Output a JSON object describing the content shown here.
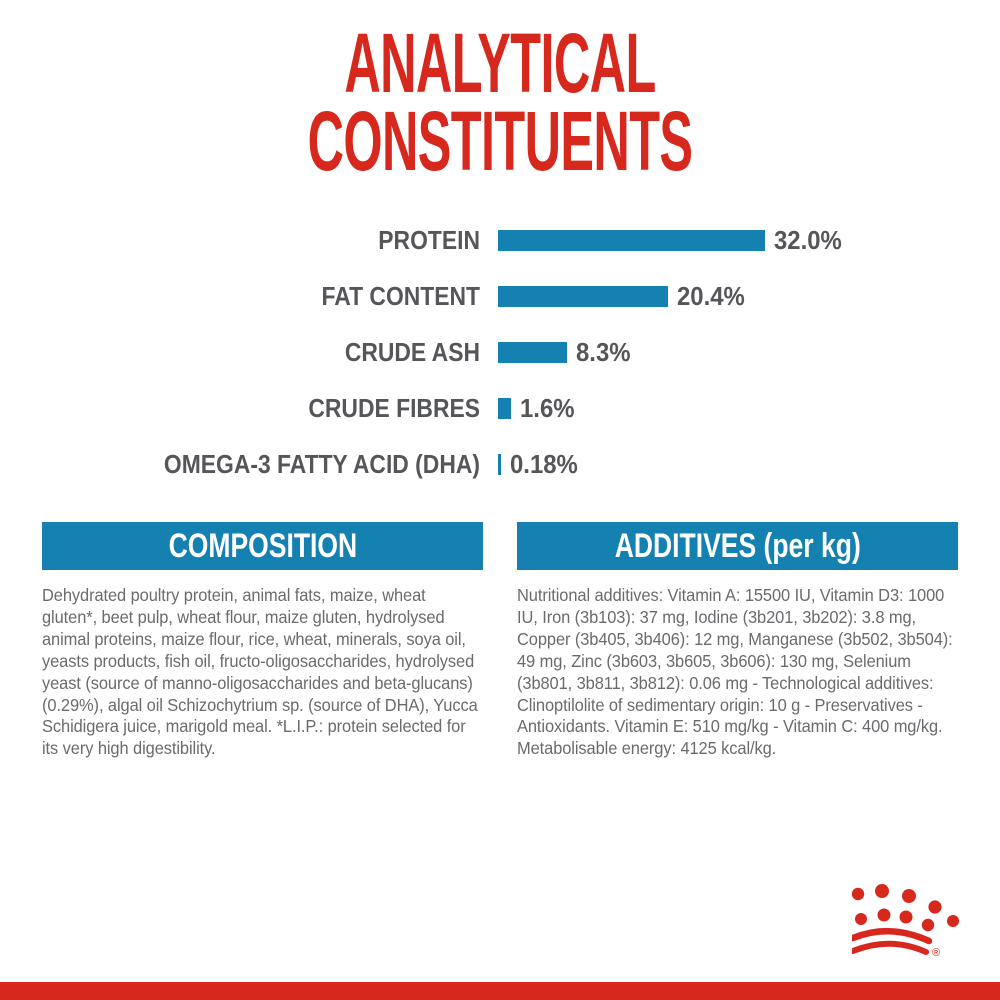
{
  "title": {
    "line1": "ANALYTICAL",
    "line2": "CONSTITUENTS"
  },
  "chart_data": {
    "type": "bar",
    "orientation": "horizontal",
    "categories": [
      "PROTEIN",
      "FAT CONTENT",
      "CRUDE ASH",
      "CRUDE FIBRES",
      "OMEGA-3 FATTY ACID (DHA)"
    ],
    "values": [
      32.0,
      20.4,
      8.3,
      1.6,
      0.18
    ],
    "value_labels": [
      "32.0%",
      "20.4%",
      "8.3%",
      "1.6%",
      "0.18%"
    ],
    "unit": "%",
    "xlim": [
      0,
      32
    ],
    "grid": false,
    "legend": "none",
    "bar_color": "#1481b1",
    "title": "ANALYTICAL CONSTITUENTS"
  },
  "sections": {
    "composition": {
      "header": "COMPOSITION",
      "body": "Dehydrated poultry protein, animal fats, maize, wheat gluten*, beet pulp, wheat flour, maize gluten, hydrolysed animal proteins, maize flour, rice, wheat, minerals, soya oil, yeasts products, fish oil, fructo-oligosaccharides, hydrolysed yeast (source of manno-oligosaccharides and beta-glucans) (0.29%), algal oil Schizochytrium sp. (source of DHA), Yucca Schidigera juice, marigold meal. *L.I.P.: protein selected for its very high digestibility."
    },
    "additives": {
      "header": "ADDITIVES (per kg)",
      "body": "Nutritional additives: Vitamin A: 15500 IU, Vitamin D3: 1000 IU, Iron (3b103): 37 mg, Iodine (3b201, 3b202): 3.8 mg, Copper (3b405, 3b406): 12 mg, Manganese (3b502, 3b504): 49 mg, Zinc (3b603, 3b605, 3b606): 130 mg, Selenium (3b801, 3b811, 3b812): 0.06 mg - Technological additives: Clinoptilolite of sedimentary origin: 10 g - Preservatives - Antioxidants. Vitamin E: 510 mg/kg - Vitamin C: 400 mg/kg. Metabolisable energy: 4125 kcal/kg."
    }
  },
  "branding": {
    "logo": "royal-canin-crown-logo",
    "registered_mark": "®"
  },
  "colors": {
    "red": "#d7281e",
    "blue": "#1481b1",
    "label_gray": "#55565a",
    "body_gray": "#6a6b6e",
    "background": "#ffffff"
  }
}
